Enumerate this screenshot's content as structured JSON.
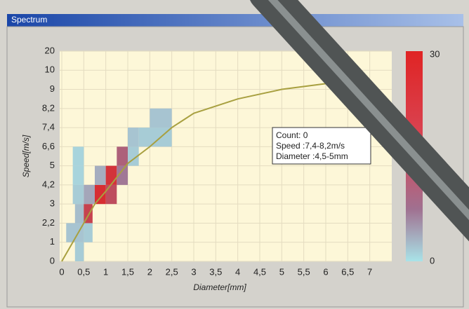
{
  "window": {
    "title": "Spectrum"
  },
  "chart_data": {
    "type": "heatmap",
    "xlabel": "Diameter[mm]",
    "ylabel": "Speed[m/s]",
    "xlim": [
      0,
      7.5
    ],
    "xticks": [
      0,
      {
        "value": 0.5,
        "label": "0,5"
      },
      1,
      {
        "value": 1.5,
        "label": "1,5"
      },
      2,
      {
        "value": 2.5,
        "label": "2,5"
      },
      3,
      {
        "value": 3.5,
        "label": "3,5"
      },
      4,
      {
        "value": 4.5,
        "label": "4,5"
      },
      5,
      {
        "value": 5.5,
        "label": "5,5"
      },
      6,
      {
        "value": 6.5,
        "label": "6,5"
      },
      7
    ],
    "ylim": [
      0,
      20
    ],
    "yticks": [
      0,
      1,
      {
        "value": 2.2,
        "label": "2,2"
      },
      3,
      {
        "value": 4.2,
        "label": "4,2"
      },
      5,
      {
        "value": 6.6,
        "label": "6,6"
      },
      {
        "value": 7.4,
        "label": "7,4"
      },
      {
        "value": 8.2,
        "label": "8,2"
      },
      9,
      10,
      20
    ],
    "grid": true,
    "colorbar": {
      "min": 0,
      "max": 30,
      "low_color": "#a9e3e8",
      "mid_color": "#a07090",
      "high_color": "#e02424"
    },
    "cells": [
      {
        "x": [
          0.3,
          0.5
        ],
        "y": [
          0,
          1
        ],
        "count": 3
      },
      {
        "x": [
          0.1,
          0.5
        ],
        "y": [
          1,
          2.2
        ],
        "count": 4
      },
      {
        "x": [
          0.5,
          0.7
        ],
        "y": [
          1,
          2.2
        ],
        "count": 3
      },
      {
        "x": [
          0.3,
          0.5
        ],
        "y": [
          2.2,
          3
        ],
        "count": 5
      },
      {
        "x": [
          0.5,
          0.7
        ],
        "y": [
          2.2,
          3
        ],
        "count": 24
      },
      {
        "x": [
          0.5,
          0.75
        ],
        "y": [
          3,
          4.2
        ],
        "count": 8
      },
      {
        "x": [
          0.25,
          0.5
        ],
        "y": [
          3,
          4.2
        ],
        "count": 3
      },
      {
        "x": [
          0.25,
          0.5
        ],
        "y": [
          4.2,
          5
        ],
        "count": 2
      },
      {
        "x": [
          0.25,
          0.5
        ],
        "y": [
          5,
          6.6
        ],
        "count": 2
      },
      {
        "x": [
          0.75,
          1
        ],
        "y": [
          3,
          4.2
        ],
        "count": 28
      },
      {
        "x": [
          0.75,
          1
        ],
        "y": [
          4.2,
          5
        ],
        "count": 7
      },
      {
        "x": [
          1,
          1.25
        ],
        "y": [
          3,
          4.2
        ],
        "count": 22
      },
      {
        "x": [
          1,
          1.25
        ],
        "y": [
          4.2,
          5
        ],
        "count": 27
      },
      {
        "x": [
          1.25,
          1.5
        ],
        "y": [
          4.2,
          5
        ],
        "count": 14
      },
      {
        "x": [
          1.25,
          1.5
        ],
        "y": [
          5,
          6.6
        ],
        "count": 18
      },
      {
        "x": [
          1.5,
          1.75
        ],
        "y": [
          5,
          6.6
        ],
        "count": 3
      },
      {
        "x": [
          1.5,
          1.75
        ],
        "y": [
          6.6,
          7.4
        ],
        "count": 4
      },
      {
        "x": [
          1.75,
          2.5
        ],
        "y": [
          6.6,
          7.4
        ],
        "count": 3
      },
      {
        "x": [
          2,
          2.5
        ],
        "y": [
          7.4,
          8.2
        ],
        "count": 4
      }
    ],
    "curve": {
      "color": "#a8a040",
      "x": [
        0,
        0.25,
        0.5,
        0.75,
        1,
        1.5,
        2,
        2.5,
        3,
        4,
        5,
        6,
        6.5
      ],
      "y": [
        0,
        1,
        2.2,
        3,
        3.8,
        5.2,
        6.6,
        7.4,
        8,
        8.6,
        9,
        9.3,
        9.4
      ]
    },
    "tooltip": [
      "Count: 0",
      " Speed :7,4-8,2m/s",
      "Diameter :4,5-5mm"
    ]
  }
}
